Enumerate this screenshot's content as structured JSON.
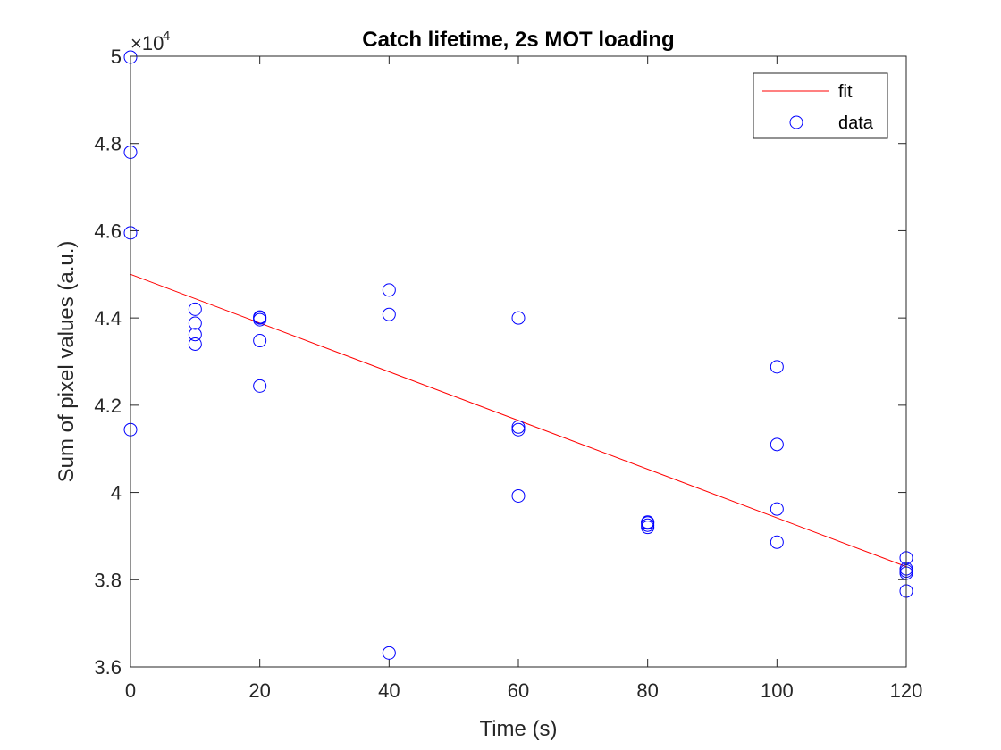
{
  "chart_data": {
    "type": "scatter",
    "title": "Catch lifetime, 2s MOT loading",
    "xlabel": "Time (s)",
    "ylabel": "Sum of pixel values (a.u.)",
    "xlim": [
      0,
      120
    ],
    "ylim": [
      36000,
      50000
    ],
    "x_ticks": [
      0,
      20,
      40,
      60,
      80,
      100,
      120
    ],
    "x_tick_labels": [
      "0",
      "20",
      "40",
      "60",
      "80",
      "100",
      "120"
    ],
    "y_ticks": [
      36000,
      38000,
      40000,
      42000,
      44000,
      46000,
      48000,
      50000
    ],
    "y_tick_labels": [
      "3.6",
      "3.8",
      "4",
      "4.2",
      "4.4",
      "4.6",
      "4.8",
      "5"
    ],
    "y_exponent": {
      "base": "×10",
      "power": "4"
    },
    "grid": false,
    "legend_position": "top-right",
    "series": [
      {
        "name": "fit",
        "kind": "line",
        "color": "#ff0000",
        "x": [
          0,
          120
        ],
        "y": [
          45000,
          38300
        ]
      },
      {
        "name": "data",
        "kind": "marker-circle",
        "color": "#0000ff",
        "x": [
          0,
          0,
          0,
          0,
          10,
          10,
          10,
          10,
          20,
          20,
          20,
          20,
          20,
          40,
          40,
          40,
          60,
          60,
          60,
          60,
          80,
          80,
          80,
          80,
          100,
          100,
          100,
          100,
          120,
          120,
          120,
          120,
          120
        ],
        "y": [
          49980,
          47800,
          45950,
          41440,
          44200,
          43880,
          43620,
          43400,
          44000,
          43960,
          43480,
          42440,
          44020,
          44640,
          44080,
          36320,
          44000,
          41500,
          41440,
          39920,
          39320,
          39250,
          39200,
          39300,
          42880,
          41100,
          39620,
          38860,
          38500,
          38200,
          38150,
          37740,
          38250
        ]
      }
    ]
  }
}
